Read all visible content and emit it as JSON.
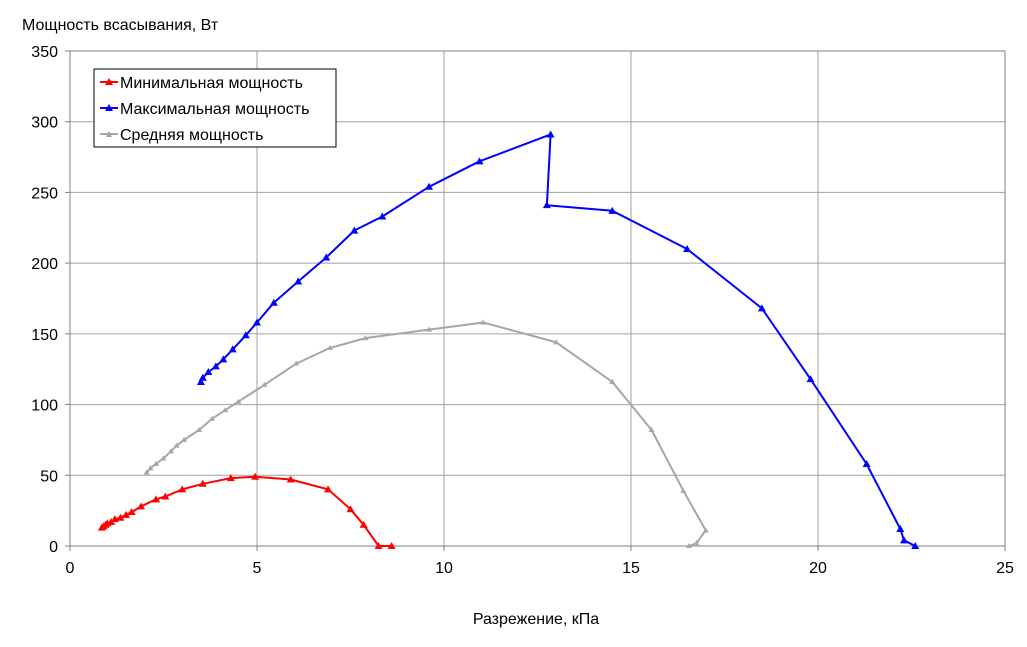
{
  "chart_data": {
    "type": "line",
    "title": "",
    "ylabel": "Мощность всасывания, Вт",
    "xlabel": "Разрежение, кПа",
    "xlim": [
      0,
      25
    ],
    "ylim": [
      0,
      350
    ],
    "xticks": [
      0,
      5,
      10,
      15,
      20,
      25
    ],
    "yticks": [
      0,
      50,
      100,
      150,
      200,
      250,
      300,
      350
    ],
    "grid": true,
    "legend_position": "top-left",
    "series": [
      {
        "name": "Минимальная мощность",
        "color": "#ff0000",
        "marker": "triangle",
        "points": [
          [
            0.85,
            13
          ],
          [
            0.9,
            14
          ],
          [
            0.95,
            15
          ],
          [
            1.0,
            16
          ],
          [
            1.1,
            17
          ],
          [
            1.2,
            19
          ],
          [
            1.35,
            20
          ],
          [
            1.5,
            22
          ],
          [
            1.65,
            24
          ],
          [
            1.9,
            28
          ],
          [
            2.3,
            33
          ],
          [
            2.55,
            35
          ],
          [
            3.0,
            40
          ],
          [
            3.55,
            44
          ],
          [
            4.3,
            48
          ],
          [
            4.95,
            49
          ],
          [
            5.9,
            47
          ],
          [
            6.9,
            40
          ],
          [
            7.5,
            26
          ],
          [
            7.85,
            15
          ],
          [
            8.25,
            0
          ],
          [
            8.6,
            0
          ]
        ]
      },
      {
        "name": "Максимальная мощность",
        "color": "#0000ff",
        "marker": "triangle",
        "points": [
          [
            3.5,
            116
          ],
          [
            3.55,
            119
          ],
          [
            3.7,
            123
          ],
          [
            3.9,
            127
          ],
          [
            4.1,
            132
          ],
          [
            4.35,
            139
          ],
          [
            4.7,
            149
          ],
          [
            5.0,
            158
          ],
          [
            5.45,
            172
          ],
          [
            6.1,
            187
          ],
          [
            6.85,
            204
          ],
          [
            7.6,
            223
          ],
          [
            8.35,
            233
          ],
          [
            9.6,
            254
          ],
          [
            10.95,
            272
          ],
          [
            12.85,
            291
          ],
          [
            12.75,
            241
          ],
          [
            14.5,
            237
          ],
          [
            16.5,
            210
          ],
          [
            18.5,
            168
          ],
          [
            19.8,
            118
          ],
          [
            21.3,
            58
          ],
          [
            22.2,
            12
          ],
          [
            22.3,
            4
          ],
          [
            22.6,
            0
          ]
        ]
      },
      {
        "name": "Средняя мощность",
        "color": "#a6a6a6",
        "marker": "triangle-small",
        "points": [
          [
            2.05,
            52
          ],
          [
            2.15,
            55
          ],
          [
            2.3,
            58
          ],
          [
            2.5,
            62
          ],
          [
            2.7,
            67
          ],
          [
            2.85,
            71
          ],
          [
            3.05,
            75
          ],
          [
            3.45,
            82
          ],
          [
            3.8,
            90
          ],
          [
            4.15,
            96
          ],
          [
            4.5,
            102
          ],
          [
            5.2,
            114
          ],
          [
            6.05,
            129
          ],
          [
            6.95,
            140
          ],
          [
            7.9,
            147
          ],
          [
            9.6,
            153
          ],
          [
            11.05,
            158
          ],
          [
            13.0,
            144
          ],
          [
            14.5,
            116
          ],
          [
            15.55,
            82
          ],
          [
            16.4,
            39
          ],
          [
            17.0,
            11
          ],
          [
            16.75,
            2
          ],
          [
            16.55,
            0
          ]
        ]
      }
    ]
  }
}
